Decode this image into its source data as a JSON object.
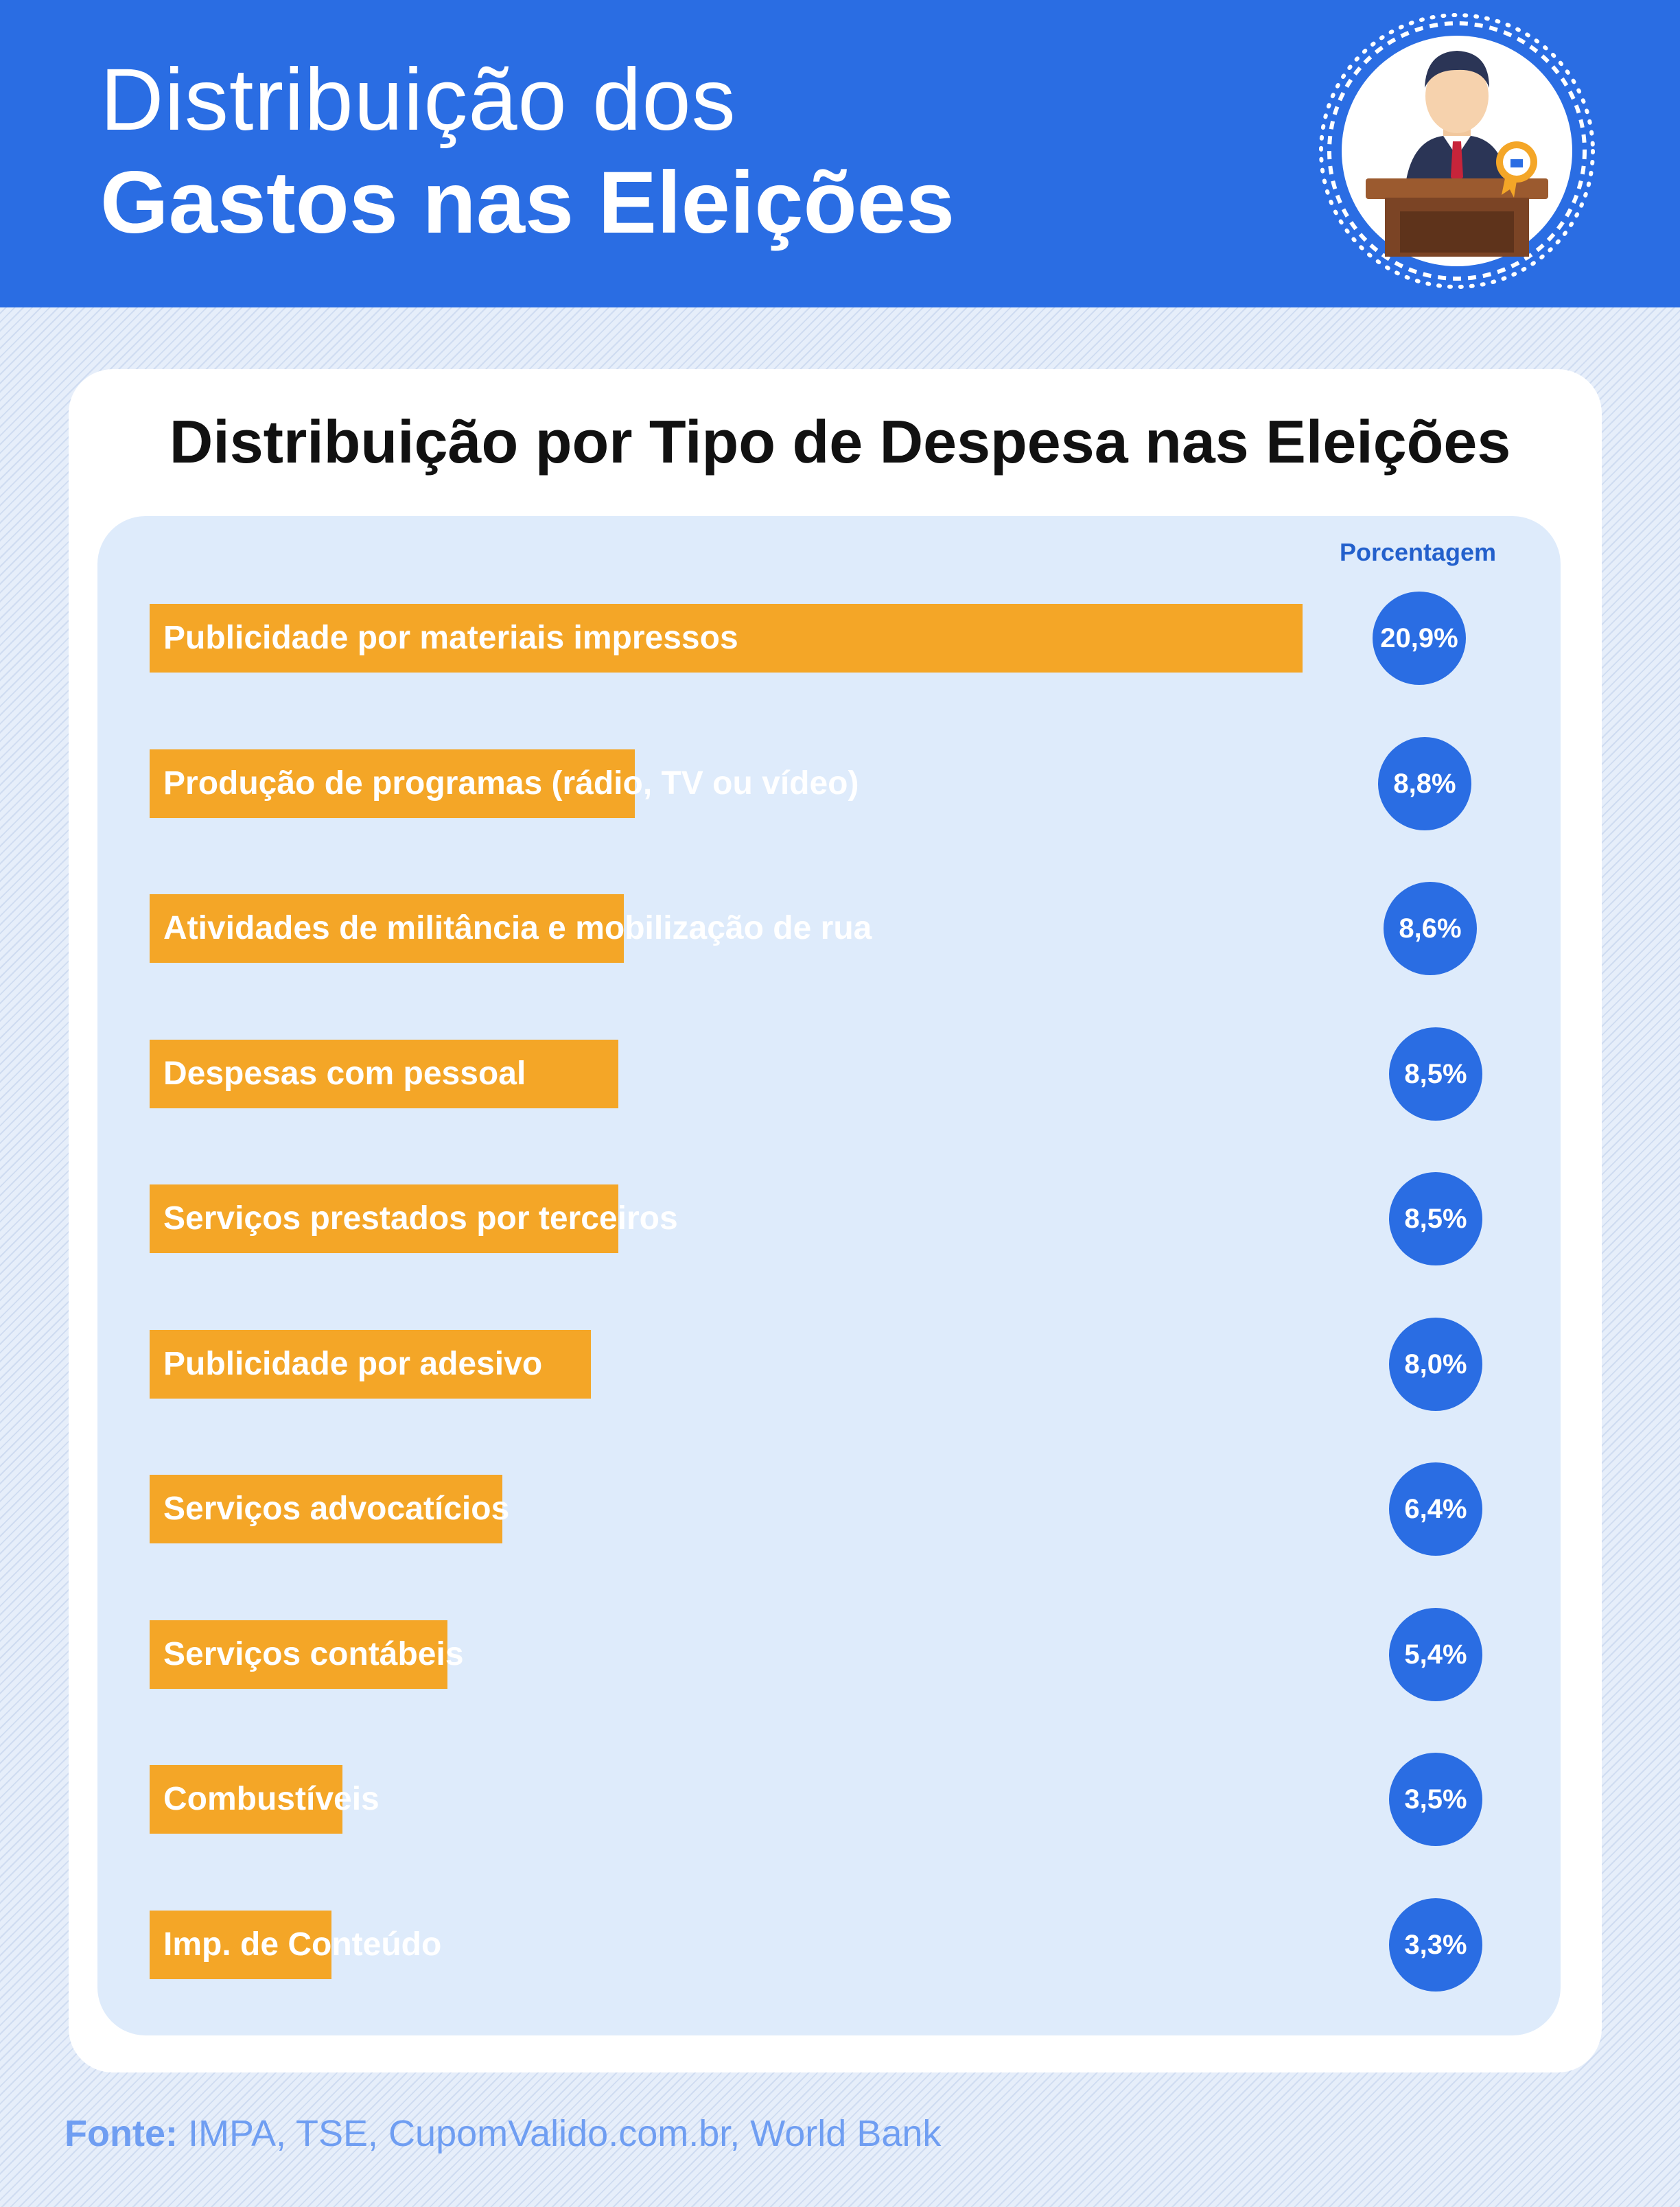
{
  "header": {
    "title_line1": "Distribuição dos",
    "title_line2": "Gastos nas Eleições",
    "emblem_icon": "politician-at-podium-icon"
  },
  "colors": {
    "header_bg": "#2a6de3",
    "bar": "#f4a627",
    "badge": "#2a6de3",
    "panel": "#deebfb"
  },
  "chart_data": {
    "type": "bar",
    "orientation": "horizontal",
    "title": "Distribuição por Tipo de Despesa nas Eleições",
    "value_column_header": "Porcentagem",
    "unit": "%",
    "categories": [
      "Publicidade por materiais impressos",
      "Produção de programas (rádio, TV ou vídeo)",
      "Atividades de militância e mobilização de rua",
      "Despesas com pessoal",
      "Serviços prestados por terceiros",
      "Publicidade por adesivo",
      "Serviços advocatícios",
      "Serviços contábeis",
      "Combustíveis",
      "Imp. de Conteúdo"
    ],
    "values": [
      20.9,
      8.8,
      8.6,
      8.5,
      8.5,
      8.0,
      6.4,
      5.4,
      3.5,
      3.3
    ],
    "value_labels": [
      "20,9%",
      "8,8%",
      "8,6%",
      "8,5%",
      "8,5%",
      "8,0%",
      "6,4%",
      "5,4%",
      "3,5%",
      "3,3%"
    ]
  },
  "source": {
    "label": "Fonte:",
    "text": "IMPA, TSE, CupomValido.com.br, World Bank"
  }
}
